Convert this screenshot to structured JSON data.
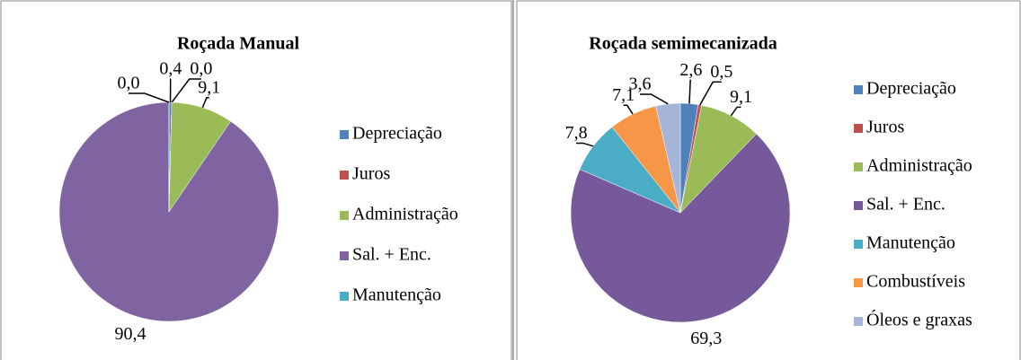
{
  "chart_data": [
    {
      "type": "pie",
      "title": "Roçada Manual",
      "categories": [
        "Depreciação",
        "Juros",
        "Administração",
        "Sal. + Enc.",
        "Manutenção"
      ],
      "values": [
        0.4,
        0.0,
        9.1,
        90.4,
        0.0
      ],
      "value_labels": [
        "0,4",
        "0,0",
        "9,1",
        "90,4",
        "0,0"
      ],
      "colors": [
        "#4f81bd",
        "#c0504d",
        "#9bbb59",
        "#8064a2",
        "#4bacc6"
      ],
      "legend": "right"
    },
    {
      "type": "pie",
      "title": "Roçada semimecanizada",
      "categories": [
        "Depreciação",
        "Juros",
        "Administração",
        "Sal. + Enc.",
        "Manutenção",
        "Combustíveis",
        "Óleos e graxas"
      ],
      "values": [
        2.6,
        0.5,
        9.1,
        69.3,
        7.8,
        7.1,
        3.6
      ],
      "value_labels": [
        "2,6",
        "0,5",
        "9,1",
        "69,3",
        "7,8",
        "7,1",
        "3,6"
      ],
      "colors": [
        "#4f81bd",
        "#c0504d",
        "#9bbb59",
        "#76599b",
        "#4bacc6",
        "#f79646",
        "#a5b5da"
      ],
      "legend": "right"
    }
  ]
}
